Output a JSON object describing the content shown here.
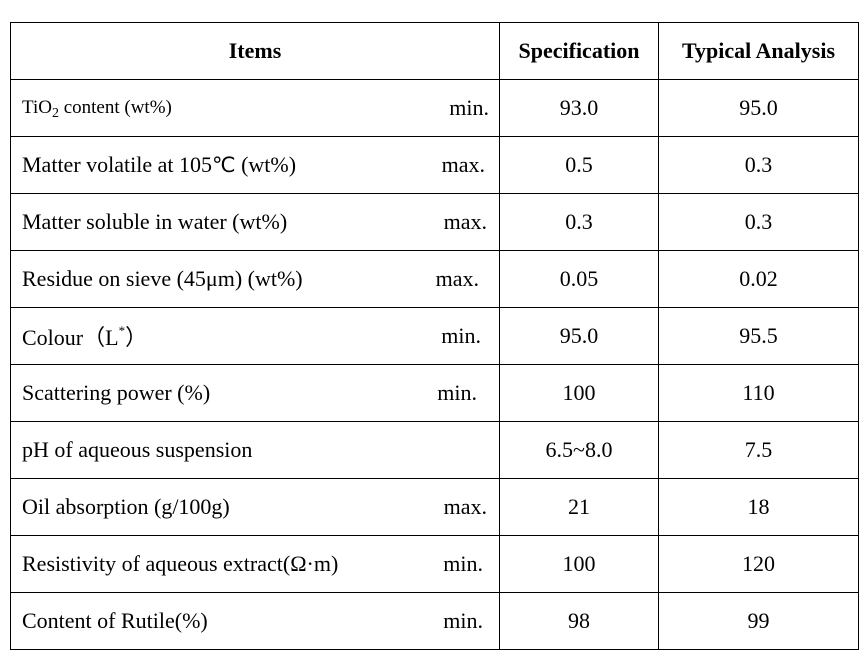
{
  "headers": {
    "items": "Items",
    "specification": "Specification",
    "typical": "Typical Analysis"
  },
  "rows": [
    {
      "label_pre": "TiO",
      "label_sub": "2",
      "label_post": " content (wt%)",
      "qualifier": "min.",
      "spec": "93.0",
      "typical": "95.0"
    },
    {
      "label_pre": "Matter volatile at 105",
      "label_unit": "℃",
      "label_post": " (wt%)",
      "qualifier": "max.",
      "spec": "0.5",
      "typical": "0.3"
    },
    {
      "label": "Matter soluble in water (wt%)",
      "qualifier": "max.",
      "spec": "0.3",
      "typical": "0.3"
    },
    {
      "label": "Residue on sieve (45μm) (wt%)",
      "qualifier": "max.",
      "spec": "0.05",
      "typical": "0.02"
    },
    {
      "label_pre": "Colour（L",
      "label_sup": "*",
      "label_post": "）",
      "qualifier": "min.",
      "spec": "95.0",
      "typical": "95.5"
    },
    {
      "label": "Scattering power (%)",
      "qualifier": "min.",
      "spec": "100",
      "typical": "110"
    },
    {
      "label": "pH of aqueous suspension",
      "qualifier": "",
      "spec": "6.5~8.0",
      "typical": "7.5"
    },
    {
      "label": "Oil absorption (g/100g)",
      "qualifier": "max.",
      "spec": "21",
      "typical": "18"
    },
    {
      "label": "Resistivity of aqueous extract(Ω·m)",
      "qualifier": "min.",
      "spec": "100",
      "typical": "120"
    },
    {
      "label": "Content of Rutile(%)",
      "qualifier": "min.",
      "spec": "98",
      "typical": "99"
    }
  ]
}
